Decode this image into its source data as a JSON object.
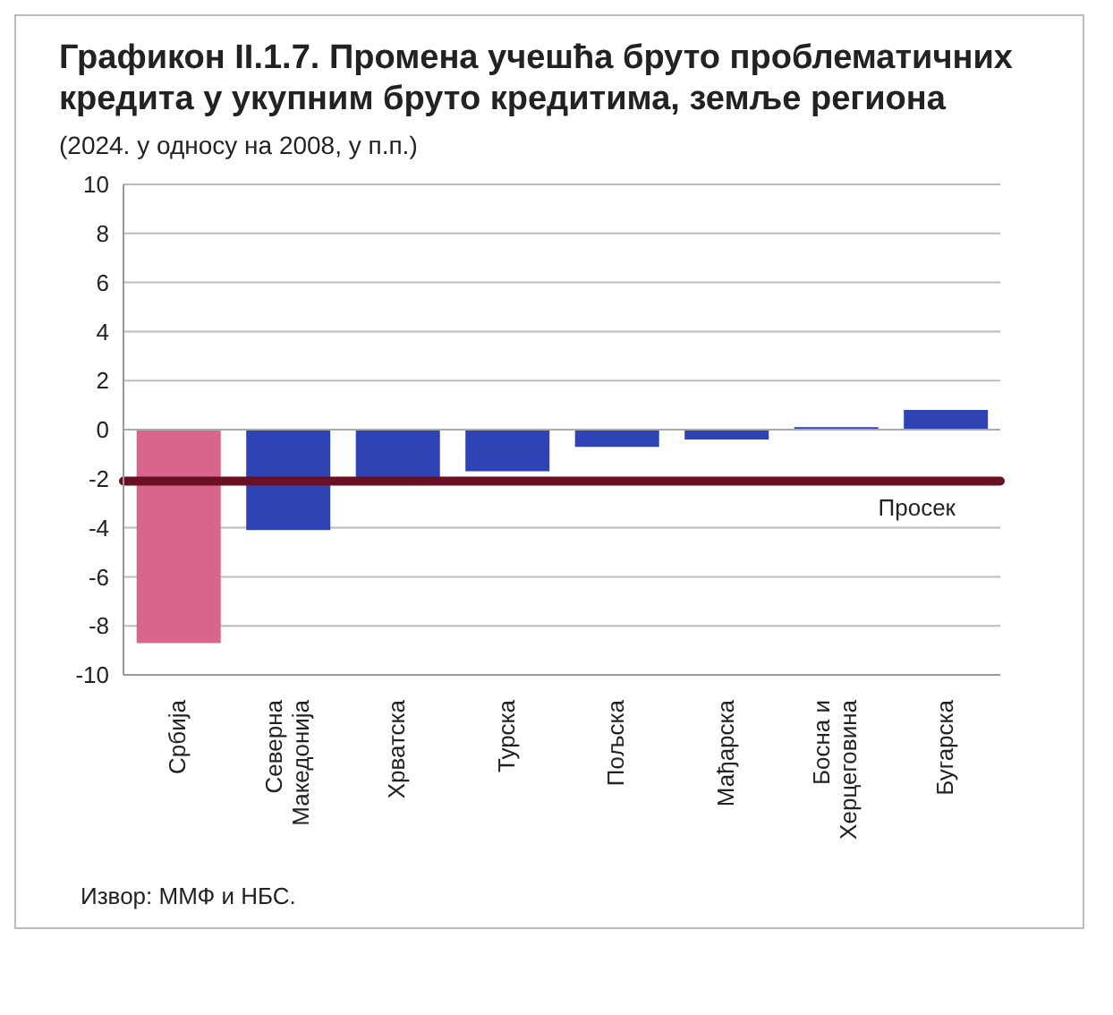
{
  "chart_data": {
    "type": "bar",
    "title": "Графикон II.1.7. Промена учешћа бруто проблематичних кредита у укупним бруто кредитима, земље региона",
    "subtitle": "(2024. у односу на 2008, у п.п.)",
    "categories": [
      "Србија",
      "Северна Македонија",
      "Хрватска",
      "Турска",
      "Пољска",
      "Мађарска",
      "Босна и Херцеговина",
      "Бугарска"
    ],
    "values": [
      -8.7,
      -4.1,
      -2.0,
      -1.7,
      -0.7,
      -0.4,
      0.1,
      0.8
    ],
    "colors": [
      "#d9668a",
      "#2e44b4",
      "#2e44b4",
      "#2e44b4",
      "#2e44b4",
      "#2e44b4",
      "#2e44b4",
      "#2e44b4"
    ],
    "ylim": [
      -10,
      10
    ],
    "yticks": [
      -10,
      -8,
      -6,
      -4,
      -2,
      0,
      2,
      4,
      6,
      8,
      10
    ],
    "grid": "y",
    "ref_lines": [
      {
        "axis": "y",
        "value": -2.1,
        "label": "Просек",
        "color": "#6b1024"
      }
    ],
    "annotations": [
      "Извор: ММФ и НБС."
    ]
  }
}
